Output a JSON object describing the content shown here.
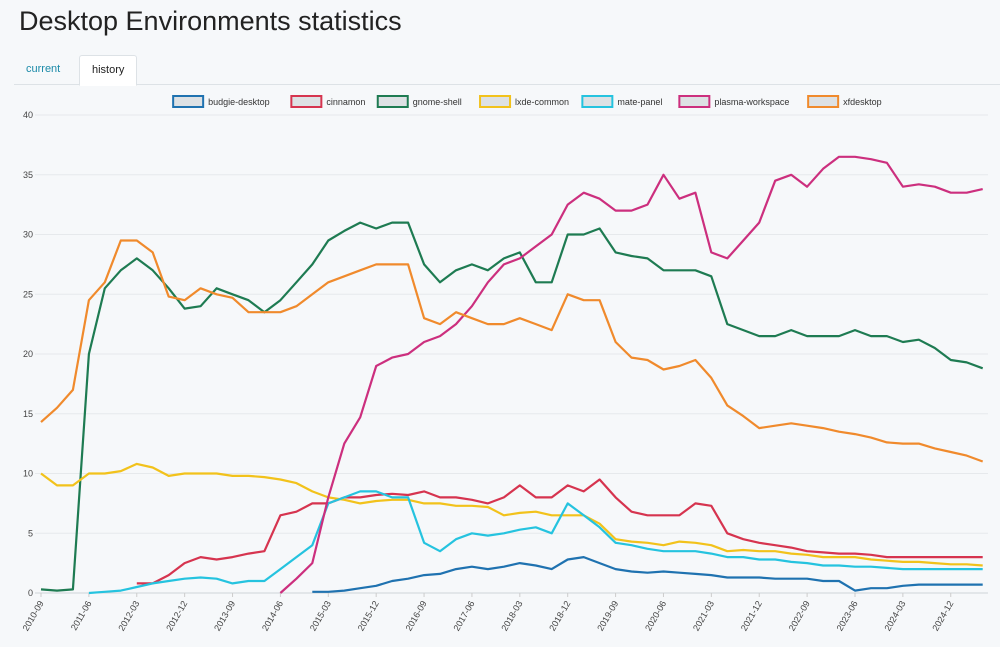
{
  "title": "Desktop Environments statistics",
  "tabs": [
    {
      "label": "current"
    },
    {
      "label": "history"
    }
  ],
  "chart_data": {
    "type": "line",
    "title": "",
    "xlabel": "",
    "ylabel": "",
    "ylim": [
      0,
      40
    ],
    "yticks": [
      0,
      5,
      10,
      15,
      20,
      25,
      30,
      35,
      40
    ],
    "x_start": "2010-09",
    "x_step_months": 3,
    "xticks": [
      "2010-09",
      "2011-06",
      "2012-03",
      "2012-12",
      "2013-09",
      "2014-06",
      "2015-03",
      "2015-12",
      "2016-09",
      "2017-06",
      "2018-03",
      "2018-12",
      "2019-09",
      "2020-06",
      "2021-03",
      "2021-12",
      "2022-09",
      "2023-06",
      "2024-03",
      "2024-12"
    ],
    "legend_position": "top",
    "grid": true,
    "series": [
      {
        "name": "budgie-desktop",
        "color": "#1f72b0",
        "values": [
          null,
          null,
          null,
          null,
          null,
          null,
          null,
          null,
          null,
          null,
          null,
          null,
          null,
          null,
          null,
          null,
          null,
          0.1,
          0.1,
          0.2,
          0.4,
          0.6,
          1,
          1.2,
          1.5,
          1.6,
          2,
          2.2,
          2,
          2.2,
          2.5,
          2.3,
          2,
          2.8,
          3,
          2.5,
          2,
          1.8,
          1.7,
          1.8,
          1.7,
          1.6,
          1.5,
          1.3,
          1.3,
          1.3,
          1.2,
          1.2,
          1.2,
          1,
          1,
          0.2,
          0.4,
          0.4,
          0.6,
          0.7,
          0.7,
          0.7,
          0.7,
          0.7
        ]
      },
      {
        "name": "cinnamon",
        "color": "#d6344f",
        "values": [
          null,
          null,
          null,
          null,
          null,
          null,
          0.8,
          0.8,
          1.5,
          2.5,
          3,
          2.8,
          3,
          3.3,
          3.5,
          6.5,
          6.8,
          7.5,
          7.5,
          8,
          8,
          8.2,
          8.3,
          8.2,
          8.5,
          8,
          8,
          7.8,
          7.5,
          8,
          9,
          8,
          8,
          9,
          8.5,
          9.5,
          8,
          6.8,
          6.5,
          6.5,
          6.5,
          7.5,
          7.3,
          5,
          4.5,
          4.2,
          4,
          3.8,
          3.5,
          3.4,
          3.3,
          3.3,
          3.2,
          3,
          3,
          3,
          3,
          3,
          3,
          3
        ]
      },
      {
        "name": "gnome-shell",
        "color": "#1e7b52",
        "values": [
          0.3,
          0.2,
          0.3,
          20,
          25.5,
          27,
          28,
          27,
          25.5,
          23.8,
          24,
          25.5,
          25,
          24.5,
          23.5,
          24.5,
          26,
          27.5,
          29.5,
          30.3,
          31,
          30.5,
          31,
          31,
          27.5,
          26,
          27,
          27.5,
          27,
          28,
          28.5,
          26,
          26,
          30,
          30,
          30.5,
          28.5,
          28.2,
          28,
          27,
          27,
          27,
          26.5,
          22.5,
          22,
          21.5,
          21.5,
          22,
          21.5,
          21.5,
          21.5,
          22,
          21.5,
          21.5,
          21,
          21.2,
          20.5,
          19.5,
          19.3,
          18.8
        ]
      },
      {
        "name": "lxde-common",
        "color": "#f2c21b",
        "values": [
          10,
          9,
          9,
          10,
          10,
          10.2,
          10.8,
          10.5,
          9.8,
          10,
          10,
          10,
          9.8,
          9.8,
          9.7,
          9.5,
          9.2,
          8.5,
          8,
          7.8,
          7.5,
          7.7,
          7.8,
          7.8,
          7.5,
          7.5,
          7.3,
          7.3,
          7.2,
          6.5,
          6.7,
          6.8,
          6.5,
          6.5,
          6.5,
          5.8,
          4.5,
          4.3,
          4.2,
          4,
          4.3,
          4.2,
          4,
          3.5,
          3.6,
          3.5,
          3.5,
          3.3,
          3.2,
          3,
          3,
          3,
          2.8,
          2.7,
          2.6,
          2.6,
          2.5,
          2.4,
          2.4,
          2.3
        ]
      },
      {
        "name": "mate-panel",
        "color": "#25c3df",
        "values": [
          null,
          null,
          null,
          0,
          0.1,
          0.2,
          0.5,
          0.8,
          1,
          1.2,
          1.3,
          1.2,
          0.8,
          1,
          1,
          2,
          3,
          4,
          7.5,
          8,
          8.5,
          8.5,
          8,
          8,
          4.2,
          3.5,
          4.5,
          5,
          4.8,
          5,
          5.3,
          5.5,
          5,
          7.5,
          6.5,
          5.5,
          4.2,
          4,
          3.7,
          3.5,
          3.5,
          3.5,
          3.3,
          3,
          3,
          2.8,
          2.8,
          2.6,
          2.5,
          2.3,
          2.3,
          2.2,
          2.2,
          2.1,
          2,
          2,
          2,
          2,
          2,
          2
        ]
      },
      {
        "name": "plasma-workspace",
        "color": "#cc2f7e",
        "values": [
          null,
          null,
          null,
          null,
          null,
          null,
          null,
          null,
          null,
          null,
          null,
          null,
          null,
          null,
          null,
          0,
          1.2,
          2.5,
          8,
          12.5,
          14.7,
          19,
          19.7,
          20,
          21,
          21.5,
          22.5,
          24,
          26,
          27.5,
          28,
          29,
          30,
          32.5,
          33.5,
          33,
          32,
          32,
          32.5,
          35,
          33,
          33.5,
          28.5,
          28,
          29.5,
          31,
          34.5,
          35,
          34,
          35.5,
          36.5,
          36.5,
          36.3,
          36,
          34,
          34.2,
          34,
          33.5,
          33.5,
          33.8
        ]
      },
      {
        "name": "xfdesktop",
        "color": "#f08a2c",
        "values": [
          14.3,
          15.5,
          17,
          24.5,
          26,
          29.5,
          29.5,
          28.5,
          24.8,
          24.5,
          25.5,
          25,
          24.7,
          23.5,
          23.5,
          23.5,
          24,
          25,
          26,
          26.5,
          27,
          27.5,
          27.5,
          27.5,
          23,
          22.5,
          23.5,
          23,
          22.5,
          22.5,
          23,
          22.5,
          22,
          25,
          24.5,
          24.5,
          21,
          19.7,
          19.5,
          18.7,
          19,
          19.5,
          18,
          15.7,
          14.8,
          13.8,
          14,
          14.2,
          14,
          13.8,
          13.5,
          13.3,
          13,
          12.6,
          12.5,
          12.5,
          12.1,
          11.8,
          11.5,
          11
        ]
      }
    ]
  }
}
